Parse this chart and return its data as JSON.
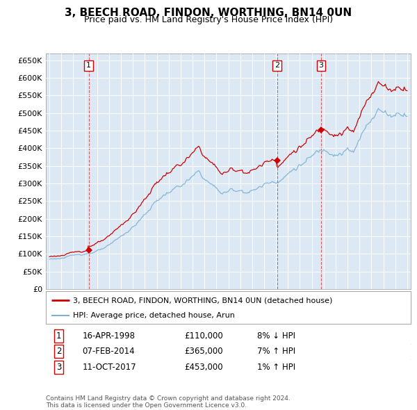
{
  "title": "3, BEECH ROAD, FINDON, WORTHING, BN14 0UN",
  "subtitle": "Price paid vs. HM Land Registry's House Price Index (HPI)",
  "plot_bg_color": "#dce9f5",
  "sale_color": "#cc0000",
  "hpi_color": "#7ab0d4",
  "vline_color": "#cc0000",
  "ylim": [
    0,
    670000
  ],
  "yticks": [
    0,
    50000,
    100000,
    150000,
    200000,
    250000,
    300000,
    350000,
    400000,
    450000,
    500000,
    550000,
    600000,
    650000
  ],
  "ytick_labels": [
    "£0",
    "£50K",
    "£100K",
    "£150K",
    "£200K",
    "£250K",
    "£300K",
    "£350K",
    "£400K",
    "£450K",
    "£500K",
    "£550K",
    "£600K",
    "£650K"
  ],
  "xlim_start": 1994.7,
  "xlim_end": 2025.3,
  "sales": [
    {
      "num": 1,
      "year": 1998.29,
      "price": 110000,
      "date": "16-APR-1998",
      "price_str": "£110,000",
      "pct": "8%",
      "dir": "↓",
      "hpi_note": "HPI"
    },
    {
      "num": 2,
      "year": 2014.09,
      "price": 365000,
      "date": "07-FEB-2014",
      "price_str": "£365,000",
      "pct": "7%",
      "dir": "↑",
      "hpi_note": "HPI"
    },
    {
      "num": 3,
      "year": 2017.78,
      "price": 453000,
      "date": "11-OCT-2017",
      "price_str": "£453,000",
      "pct": "1%",
      "dir": "↑",
      "hpi_note": "HPI"
    }
  ],
  "legend_property": "3, BEECH ROAD, FINDON, WORTHING, BN14 0UN (detached house)",
  "legend_hpi": "HPI: Average price, detached house, Arun",
  "footer1": "Contains HM Land Registry data © Crown copyright and database right 2024.",
  "footer2": "This data is licensed under the Open Government Licence v3.0."
}
